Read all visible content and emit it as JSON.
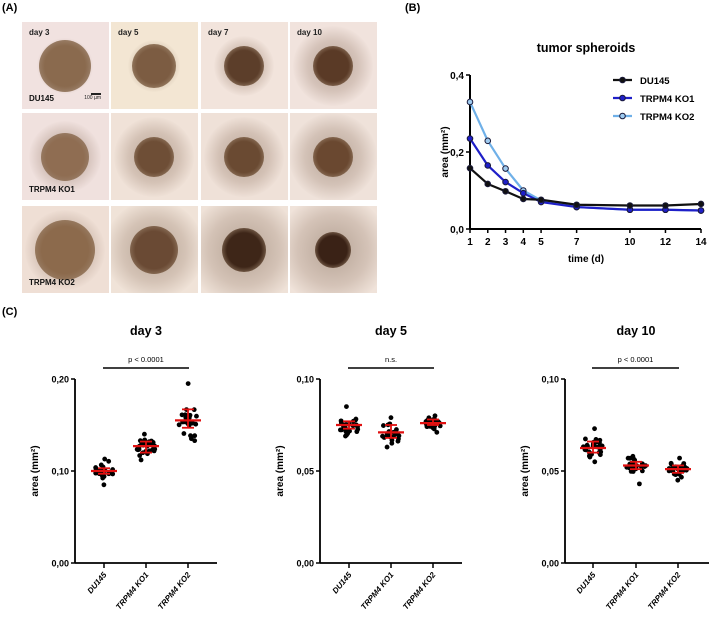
{
  "panels": {
    "a": {
      "label": "(A)",
      "columns": [
        "day 3",
        "day 5",
        "day 7",
        "day 10"
      ],
      "rows": [
        "DU145",
        "TRPM4 KO1",
        "TRPM4 KO2"
      ],
      "scale_bar": "100 µm"
    },
    "b": {
      "label": "(B)"
    },
    "c": {
      "label": "(C)"
    }
  },
  "chart_data": [
    {
      "id": "b",
      "type": "line",
      "title": "tumor spheroids",
      "xlabel": "time (d)",
      "ylabel": "area (mm²)",
      "x": [
        1,
        2,
        3,
        4,
        5,
        7,
        10,
        12,
        14
      ],
      "x_tick_labels": [
        "1",
        "2",
        "3",
        "4",
        "5",
        "7",
        "10",
        "12",
        "14"
      ],
      "ylim": [
        0,
        0.4
      ],
      "y_ticks": [
        0,
        0.2,
        0.4
      ],
      "y_tick_labels": [
        "0,0",
        "0,2",
        "0,4"
      ],
      "legend_position": "top-right",
      "series": [
        {
          "name": "DU145",
          "color": "#111111",
          "marker_fill": "#111111",
          "values": [
            0.158,
            0.117,
            0.098,
            0.078,
            0.076,
            0.063,
            0.061,
            0.061,
            0.065
          ]
        },
        {
          "name": "TRPM4 KO1",
          "color": "#1f1fc8",
          "marker_fill": "#1f1fc8",
          "values": [
            0.235,
            0.165,
            0.122,
            0.093,
            0.07,
            0.057,
            0.05,
            0.05,
            0.048
          ]
        },
        {
          "name": "TRPM4 KO2",
          "color": "#6fb0e8",
          "marker_fill": "#9fcbf0",
          "values": [
            0.33,
            0.229,
            0.157,
            0.1,
            0.074,
            0.057,
            0.05,
            0.05,
            0.048
          ]
        }
      ]
    },
    {
      "id": "c-day3",
      "type": "scatter",
      "title": "day 3",
      "ylabel": "area (mm²)",
      "categories": [
        "DU145",
        "TRPM4 KO1",
        "TRPM4 KO2"
      ],
      "ylim": [
        0,
        0.2
      ],
      "y_ticks": [
        0,
        0.1,
        0.2
      ],
      "y_tick_labels": [
        "0,00",
        "0,10",
        "0,20"
      ],
      "significance": "p < 0.0001",
      "groups": [
        {
          "name": "DU145",
          "mean": 0.1,
          "err_low": 0.097,
          "err_high": 0.103,
          "min": 0.085,
          "max": 0.113,
          "n": 24
        },
        {
          "name": "TRPM4 KO1",
          "mean": 0.127,
          "err_low": 0.12,
          "err_high": 0.132,
          "min": 0.112,
          "max": 0.14,
          "n": 30
        },
        {
          "name": "TRPM4 KO2",
          "mean": 0.155,
          "err_low": 0.147,
          "err_high": 0.167,
          "min": 0.133,
          "max": 0.195,
          "n": 26
        }
      ]
    },
    {
      "id": "c-day5",
      "type": "scatter",
      "title": "day 5",
      "ylabel": "area (mm²)",
      "categories": [
        "DU145",
        "TRPM4 KO1",
        "TRPM4 KO2"
      ],
      "ylim": [
        0,
        0.1
      ],
      "y_ticks": [
        0,
        0.05,
        0.1
      ],
      "y_tick_labels": [
        "0,00",
        "0,05",
        "0,10"
      ],
      "significance": "n.s.",
      "groups": [
        {
          "name": "DU145",
          "mean": 0.075,
          "err_low": 0.073,
          "err_high": 0.077,
          "min": 0.069,
          "max": 0.085,
          "n": 24
        },
        {
          "name": "TRPM4 KO1",
          "mean": 0.071,
          "err_low": 0.068,
          "err_high": 0.075,
          "min": 0.063,
          "max": 0.079,
          "n": 24
        },
        {
          "name": "TRPM4 KO2",
          "mean": 0.076,
          "err_low": 0.075,
          "err_high": 0.078,
          "min": 0.071,
          "max": 0.08,
          "n": 22
        }
      ]
    },
    {
      "id": "c-day10",
      "type": "scatter",
      "title": "day 10",
      "ylabel": "area (mm²)",
      "categories": [
        "DU145",
        "TRPM4 KO1",
        "TRPM4 KO2"
      ],
      "ylim": [
        0,
        0.1
      ],
      "y_ticks": [
        0,
        0.05,
        0.1
      ],
      "y_tick_labels": [
        "0,00",
        "0,05",
        "0,10"
      ],
      "significance": "p < 0.0001",
      "groups": [
        {
          "name": "DU145",
          "mean": 0.0625,
          "err_low": 0.06,
          "err_high": 0.066,
          "min": 0.055,
          "max": 0.073,
          "n": 32
        },
        {
          "name": "TRPM4 KO1",
          "mean": 0.053,
          "err_low": 0.051,
          "err_high": 0.055,
          "min": 0.043,
          "max": 0.058,
          "n": 24
        },
        {
          "name": "TRPM4 KO2",
          "mean": 0.051,
          "err_low": 0.049,
          "err_high": 0.053,
          "min": 0.045,
          "max": 0.057,
          "n": 30
        }
      ]
    }
  ],
  "colors": {
    "mean_bar": "#e01010",
    "dot": "#000000"
  }
}
